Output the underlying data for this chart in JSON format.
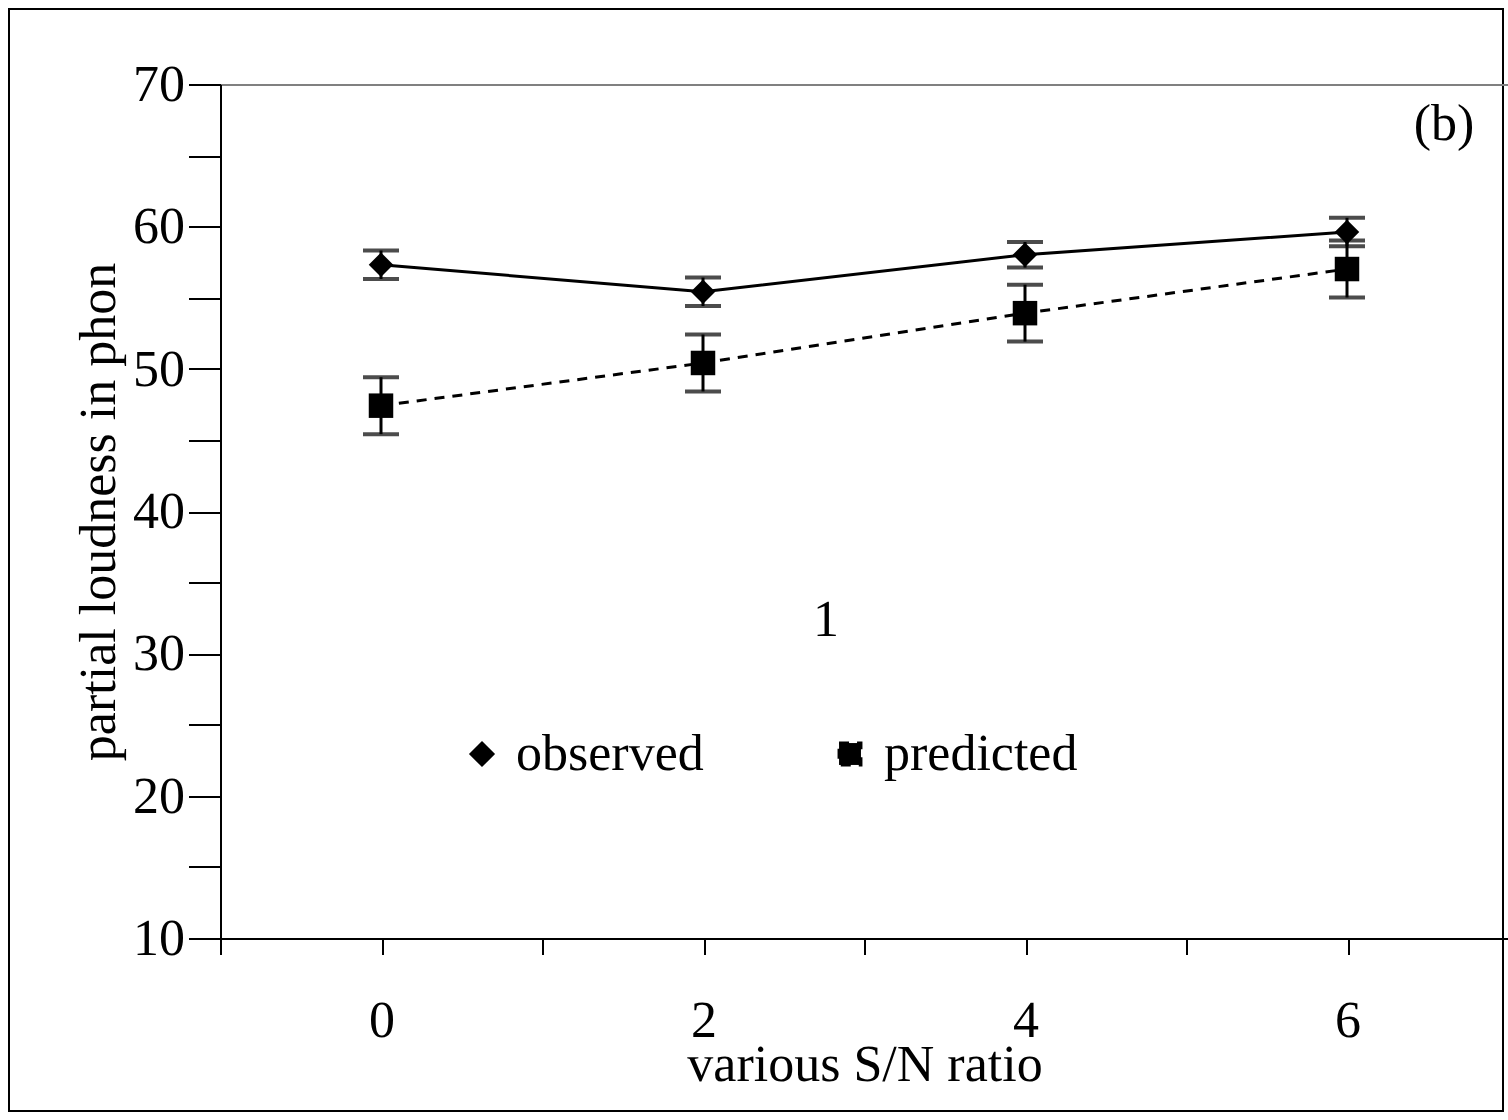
{
  "chart_data": {
    "type": "line",
    "xlabel": "various S/N ratio",
    "ylabel": "partial loudness in phon",
    "annotations": [
      "(b)",
      "1"
    ],
    "x": [
      0,
      2,
      4,
      6
    ],
    "xlim": [
      -1,
      7
    ],
    "xticks": [
      {
        "value": -1,
        "label": null
      },
      0,
      {
        "value": 1,
        "label": null
      },
      2,
      {
        "value": 3,
        "label": null
      },
      4,
      {
        "value": 5,
        "label": null
      },
      6,
      {
        "value": 7,
        "label": null
      }
    ],
    "ylim": [
      10,
      70
    ],
    "yticks": [
      10,
      {
        "value": 15,
        "label": null
      },
      20,
      {
        "value": 25,
        "label": null
      },
      30,
      {
        "value": 35,
        "label": null
      },
      40,
      {
        "value": 45,
        "label": null
      },
      50,
      {
        "value": 55,
        "label": null
      },
      60,
      {
        "value": 65,
        "label": null
      },
      70
    ],
    "series": [
      {
        "name": "observed",
        "color": "#000000",
        "marker": "diamond",
        "line_style": "solid",
        "values": [
          57.3,
          55.4,
          58.0,
          59.6
        ],
        "errors": [
          1,
          1,
          0.9,
          1
        ]
      },
      {
        "name": "predicted",
        "color": "#000000",
        "marker": "square",
        "line_style": "dashed",
        "values": [
          47.4,
          50.4,
          53.9,
          57.0
        ],
        "errors": [
          2,
          2,
          2,
          2
        ]
      }
    ],
    "legend": "bottom",
    "grid": false
  }
}
